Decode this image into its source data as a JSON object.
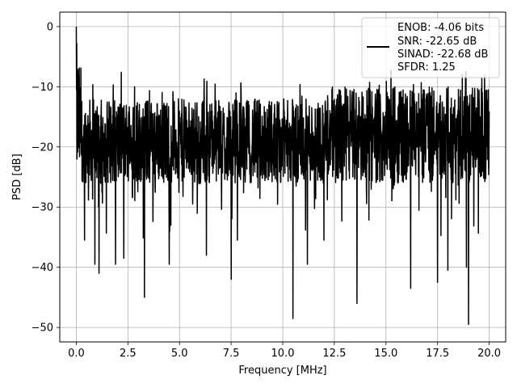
{
  "chart_data": {
    "type": "line",
    "xlabel": "Frequency [MHz]",
    "ylabel": "PSD [dB]",
    "xlim": [
      -0.8,
      20.8
    ],
    "ylim": [
      -52.4,
      2.4
    ],
    "xticks": [
      0.0,
      2.5,
      5.0,
      7.5,
      10.0,
      12.5,
      15.0,
      17.5,
      20.0
    ],
    "xtick_labels": [
      "0.0",
      "2.5",
      "5.0",
      "7.5",
      "10.0",
      "12.5",
      "15.0",
      "17.5",
      "20.0"
    ],
    "yticks": [
      0,
      -10,
      -20,
      -30,
      -40,
      -50
    ],
    "ytick_labels": [
      "0",
      "−10",
      "−20",
      "−30",
      "−40",
      "−50"
    ],
    "grid": true,
    "legend": {
      "placement": "upper right",
      "entries": [
        "ENOB: -4.06 bits",
        "SNR: -22.65 dB",
        "SINAD: -22.68 dB",
        "SFDR: 1.25"
      ]
    },
    "series_color": "#000000",
    "series": [
      {
        "name": "ENOB: -4.06 bits",
        "noise_band_db": [
          -26,
          -12
        ],
        "noise_band_db_high_freq": [
          -26,
          -10
        ],
        "peak": {
          "x": 0.0,
          "y": 0.0
        },
        "dips": [
          {
            "x": 0.4,
            "y": -35.5
          },
          {
            "x": 0.9,
            "y": -39.5
          },
          {
            "x": 1.1,
            "y": -41.0
          },
          {
            "x": 1.9,
            "y": -39.5
          },
          {
            "x": 2.3,
            "y": -38.5
          },
          {
            "x": 3.3,
            "y": -45.0
          },
          {
            "x": 4.5,
            "y": -39.5
          },
          {
            "x": 6.3,
            "y": -38.0
          },
          {
            "x": 7.5,
            "y": -42.0
          },
          {
            "x": 7.8,
            "y": -35.5
          },
          {
            "x": 10.5,
            "y": -48.5
          },
          {
            "x": 11.2,
            "y": -39.5
          },
          {
            "x": 12.0,
            "y": -35.5
          },
          {
            "x": 13.6,
            "y": -46.0
          },
          {
            "x": 16.2,
            "y": -43.5
          },
          {
            "x": 17.5,
            "y": -42.5
          },
          {
            "x": 18.0,
            "y": -40.5
          },
          {
            "x": 18.9,
            "y": -40.0
          },
          {
            "x": 19.0,
            "y": -49.5
          }
        ]
      }
    ]
  }
}
